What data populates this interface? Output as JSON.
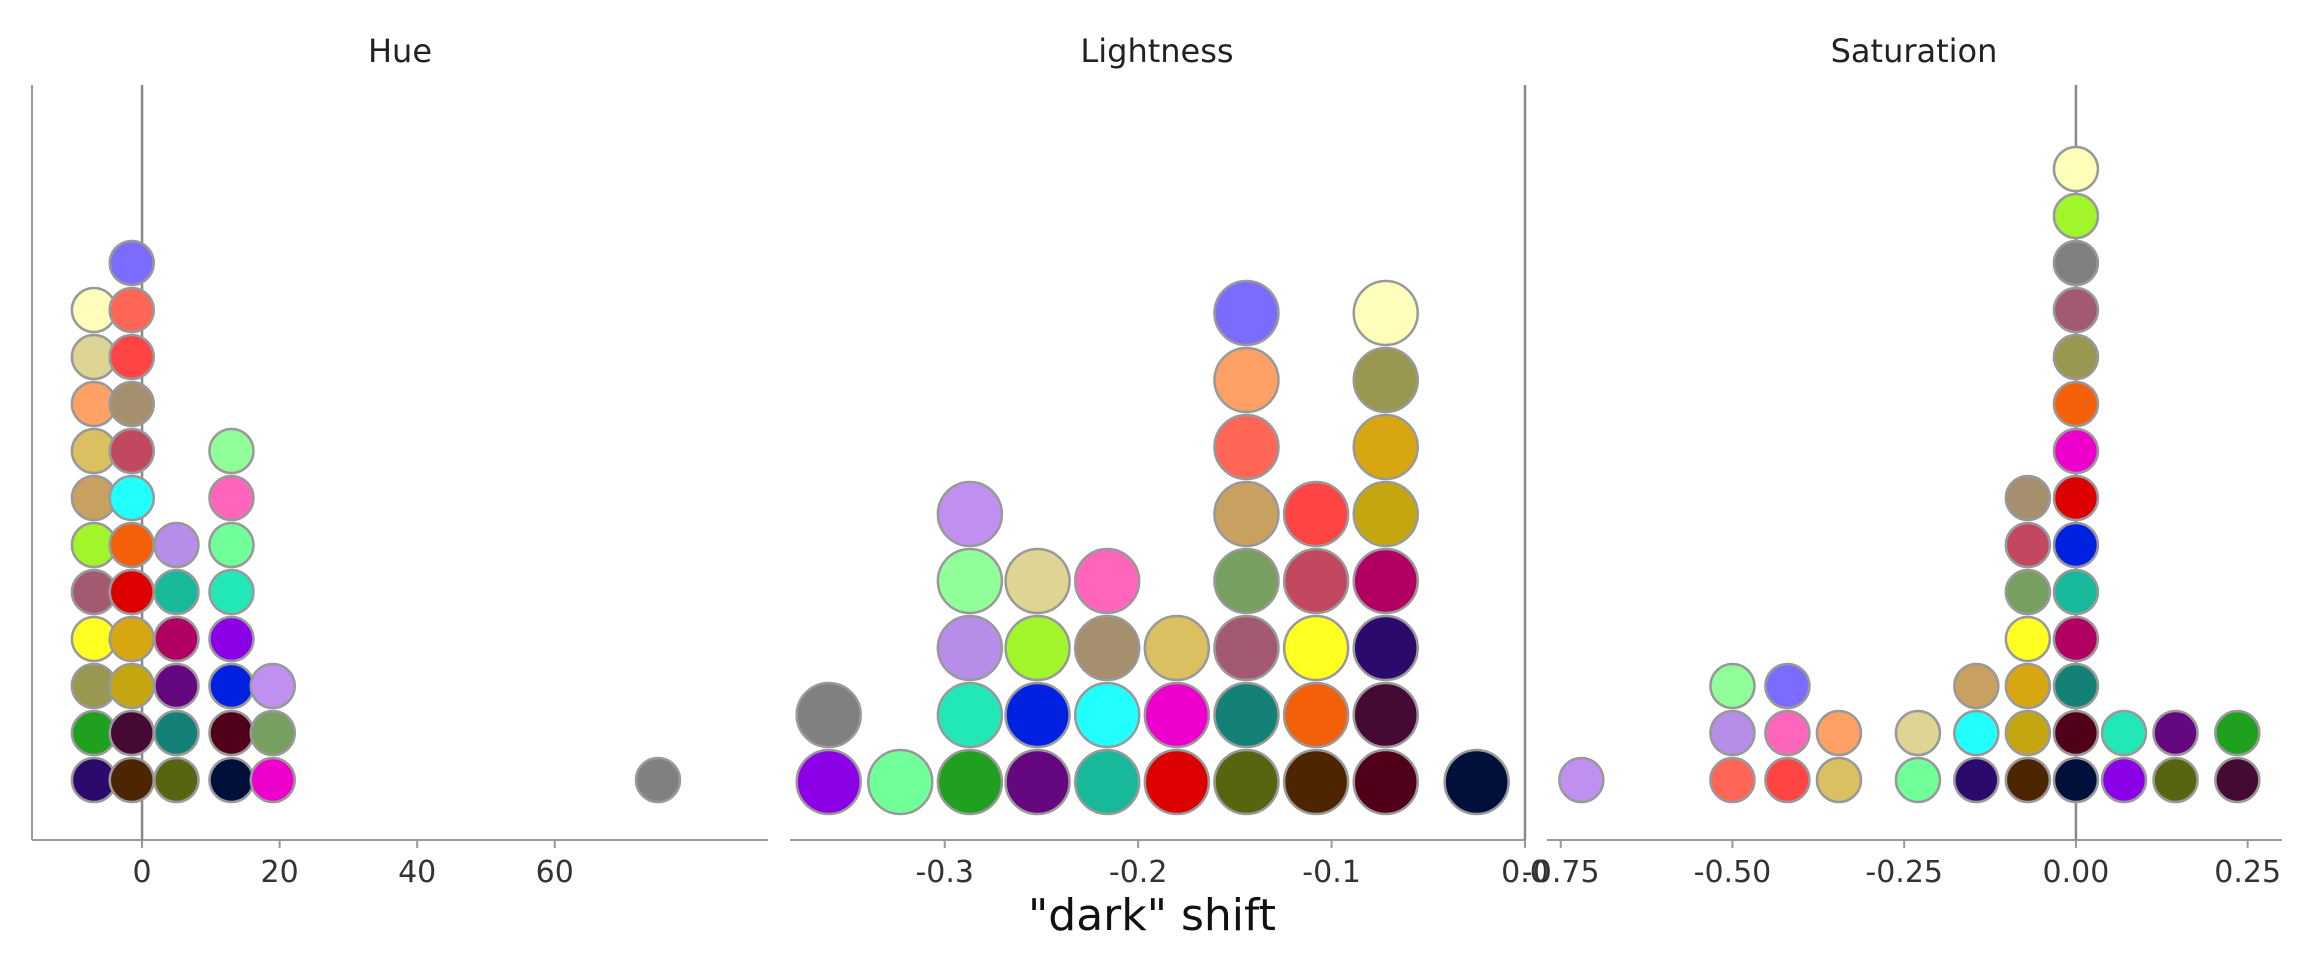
{
  "figure": {
    "xlabel": "\"dark\" shift"
  },
  "chart_data": [
    {
      "type": "scatter",
      "title": "Hue",
      "xlabel": "",
      "ylabel": "",
      "xlim": [
        -16,
        91
      ],
      "xticks": [
        0,
        20,
        40,
        60
      ],
      "xtick_labels": [
        "0",
        "20",
        "40",
        "60"
      ],
      "reference_line_x": 0,
      "marker_size": "small",
      "columns": [
        {
          "x": -7,
          "colors": [
            "#2a0a6a",
            "#1fa01f",
            "#9a9850",
            "#ffff22",
            "#a35a70",
            "#a2f52a",
            "#c8a060",
            "#dac060",
            "#ffa066",
            "#ded595",
            "#ffffbb"
          ]
        },
        {
          "x": -1.5,
          "colors": [
            "#4d2500",
            "#440a33",
            "#c4a710",
            "#d8a610",
            "#dd0000",
            "#f45f09",
            "#22ffff",
            "#c24860",
            "#a68f6e",
            "#ff4444",
            "#ff6655",
            "#7b6cff"
          ]
        },
        {
          "x": 5,
          "colors": [
            "#586510",
            "#138175",
            "#65077e",
            "#b00061",
            "#18b89a",
            "#b68de8"
          ]
        },
        {
          "x": 13,
          "colors": [
            "#00103a",
            "#500018",
            "#0022e0",
            "#8b00e6",
            "#22e8b8",
            "#70ff99",
            "#ff66bb",
            "#90ff99"
          ]
        },
        {
          "x": 19,
          "colors": [
            "#ee00cc",
            "#77a060",
            "#c090f0"
          ]
        },
        {
          "x": 75,
          "colors": [
            "#808080"
          ]
        }
      ]
    },
    {
      "type": "scatter",
      "title": "Lightness",
      "xlabel": "",
      "ylabel": "",
      "xlim": [
        -0.38,
        0.0
      ],
      "xticks": [
        -0.3,
        -0.2,
        -0.1,
        0.0
      ],
      "xtick_labels": [
        "-0.3",
        "-0.2",
        "-0.1",
        "0.0"
      ],
      "reference_line_x": 0.0,
      "marker_size": "large",
      "columns": [
        {
          "x": -0.36,
          "colors": [
            "#8b00e6",
            "#808080"
          ]
        },
        {
          "x": -0.323,
          "colors": [
            "#70ff99"
          ]
        },
        {
          "x": -0.287,
          "colors": [
            "#1fa01f",
            "#22e8b8",
            "#b68de8",
            "#90ff99",
            "#c090f0"
          ]
        },
        {
          "x": -0.252,
          "colors": [
            "#65077e",
            "#0022e0",
            "#a2f52a",
            "#ded595"
          ]
        },
        {
          "x": -0.216,
          "colors": [
            "#18b89a",
            "#22ffff",
            "#a68f6e",
            "#ff66bb"
          ]
        },
        {
          "x": -0.18,
          "colors": [
            "#dd0000",
            "#ee00cc",
            "#dac060"
          ]
        },
        {
          "x": -0.144,
          "colors": [
            "#586510",
            "#138175",
            "#a35a70",
            "#77a060",
            "#c8a060",
            "#ff6655",
            "#ffa066",
            "#7b6cff"
          ]
        },
        {
          "x": -0.108,
          "colors": [
            "#4d2500",
            "#f45f09",
            "#ffff22",
            "#c24860",
            "#ff4444"
          ]
        },
        {
          "x": -0.072,
          "colors": [
            "#500018",
            "#440a33",
            "#2a0a6a",
            "#b00061",
            "#c4a710",
            "#d8a610",
            "#9a9850",
            "#ffffbb"
          ]
        },
        {
          "x": -0.025,
          "colors": [
            "#00103a"
          ]
        }
      ]
    },
    {
      "type": "scatter",
      "title": "Saturation",
      "xlabel": "",
      "ylabel": "",
      "xlim": [
        -0.77,
        0.3
      ],
      "xticks": [
        -0.75,
        -0.5,
        -0.25,
        0.0,
        0.25
      ],
      "xtick_labels": [
        "-0.75",
        "-0.50",
        "-0.25",
        "0.00",
        "0.25"
      ],
      "reference_line_x": 0.0,
      "marker_size": "small",
      "columns": [
        {
          "x": -0.72,
          "colors": [
            "#c090f0"
          ]
        },
        {
          "x": -0.5,
          "colors": [
            "#ff6655",
            "#b68de8",
            "#90ff99"
          ]
        },
        {
          "x": -0.42,
          "colors": [
            "#ff4444",
            "#ff66bb",
            "#7b6cff"
          ]
        },
        {
          "x": -0.345,
          "colors": [
            "#dac060",
            "#ffa066"
          ]
        },
        {
          "x": -0.23,
          "colors": [
            "#70ff99",
            "#ded595"
          ]
        },
        {
          "x": -0.145,
          "colors": [
            "#2a0a6a",
            "#22ffff",
            "#c8a060"
          ]
        },
        {
          "x": -0.07,
          "colors": [
            "#4d2500",
            "#c4a710",
            "#d8a610",
            "#ffff22",
            "#77a060",
            "#c24860",
            "#a68f6e"
          ]
        },
        {
          "x": 0.0,
          "colors": [
            "#00103a",
            "#500018",
            "#138175",
            "#b00061",
            "#18b89a",
            "#0022e0",
            "#dd0000",
            "#ee00cc",
            "#f45f09",
            "#9a9850",
            "#a35a70",
            "#808080",
            "#a2f52a",
            "#ffffbb"
          ]
        },
        {
          "x": 0.07,
          "colors": [
            "#8b00e6",
            "#22e8b8"
          ]
        },
        {
          "x": 0.145,
          "colors": [
            "#586510",
            "#65077e"
          ]
        },
        {
          "x": 0.235,
          "colors": [
            "#440a33",
            "#1fa01f"
          ]
        }
      ]
    }
  ]
}
